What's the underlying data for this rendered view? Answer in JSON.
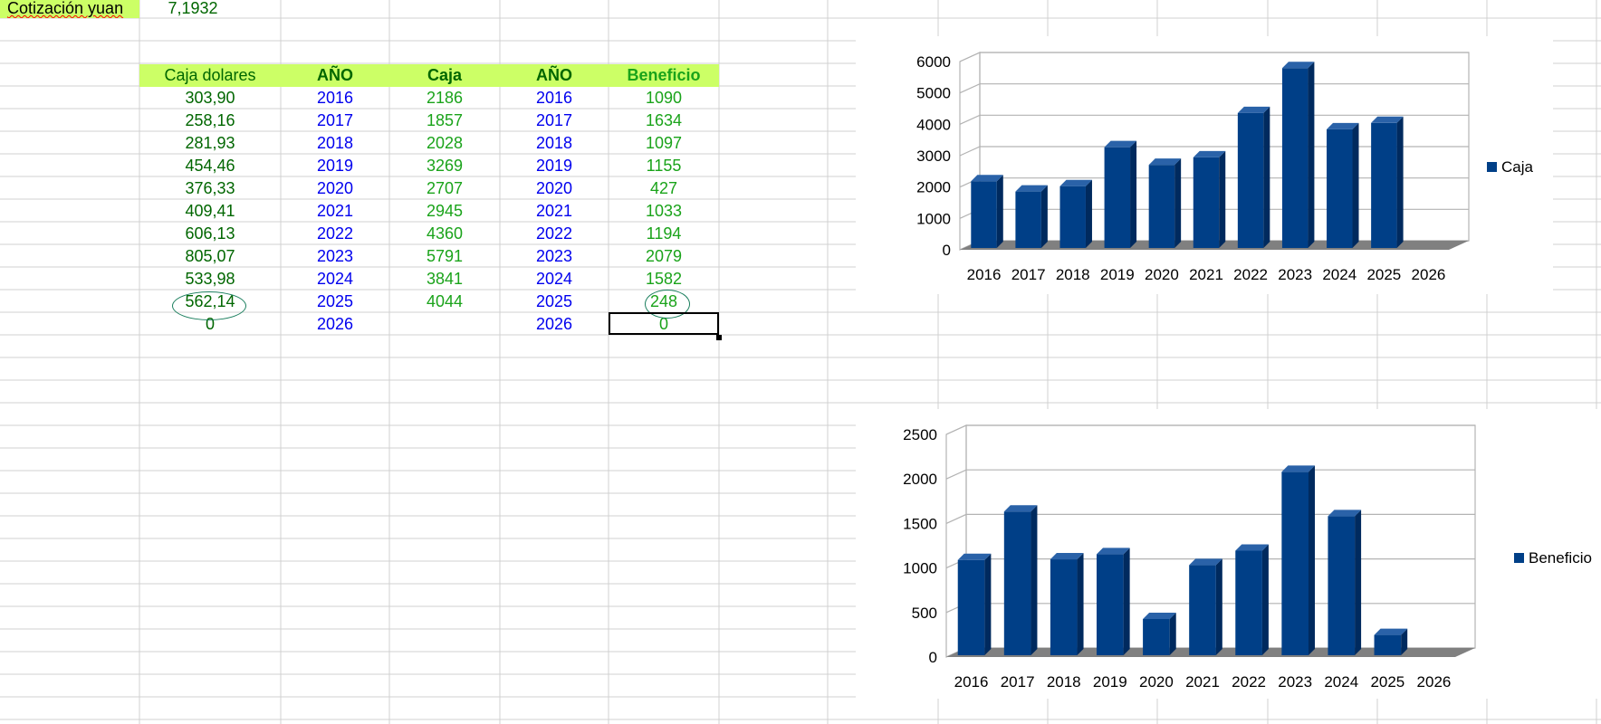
{
  "quote": {
    "label": "Cotización yuan",
    "value": "7,1932"
  },
  "headers": {
    "caja_dolares": "Caja dolares",
    "ano1": "AÑO",
    "caja": "Caja",
    "ano2": "AÑO",
    "beneficio": "Beneficio"
  },
  "rows": [
    {
      "caja_dolares": "303,90",
      "ano1": "2016",
      "caja": "2186",
      "ano2": "2016",
      "beneficio": "1090"
    },
    {
      "caja_dolares": "258,16",
      "ano1": "2017",
      "caja": "1857",
      "ano2": "2017",
      "beneficio": "1634"
    },
    {
      "caja_dolares": "281,93",
      "ano1": "2018",
      "caja": "2028",
      "ano2": "2018",
      "beneficio": "1097"
    },
    {
      "caja_dolares": "454,46",
      "ano1": "2019",
      "caja": "3269",
      "ano2": "2019",
      "beneficio": "1155"
    },
    {
      "caja_dolares": "376,33",
      "ano1": "2020",
      "caja": "2707",
      "ano2": "2020",
      "beneficio": "427"
    },
    {
      "caja_dolares": "409,41",
      "ano1": "2021",
      "caja": "2945",
      "ano2": "2021",
      "beneficio": "1033"
    },
    {
      "caja_dolares": "606,13",
      "ano1": "2022",
      "caja": "4360",
      "ano2": "2022",
      "beneficio": "1194"
    },
    {
      "caja_dolares": "805,07",
      "ano1": "2023",
      "caja": "5791",
      "ano2": "2023",
      "beneficio": "2079"
    },
    {
      "caja_dolares": "533,98",
      "ano1": "2024",
      "caja": "3841",
      "ano2": "2024",
      "beneficio": "1582"
    },
    {
      "caja_dolares": "562,14",
      "ano1": "2025",
      "caja": "4044",
      "ano2": "2025",
      "beneficio": "248"
    },
    {
      "caja_dolares": "0",
      "ano1": "2026",
      "caja": "",
      "ano2": "2026",
      "beneficio": "0"
    }
  ],
  "colors": {
    "bar": "#003f87",
    "bar_side": "#002a5e",
    "bar_top": "#2a62a8",
    "floor": "#808080",
    "gridline": "#b3b3b3",
    "header_bg": "#ccff66"
  },
  "chart_data": [
    {
      "type": "bar",
      "categories": [
        "2016",
        "2017",
        "2018",
        "2019",
        "2020",
        "2021",
        "2022",
        "2023",
        "2024",
        "2025",
        "2026"
      ],
      "series": [
        {
          "name": "Caja",
          "values": [
            2186,
            1857,
            2028,
            3269,
            2707,
            2945,
            4360,
            5791,
            3841,
            4044,
            null
          ]
        }
      ],
      "ylim": [
        0,
        6000
      ],
      "yticks": [
        0,
        1000,
        2000,
        3000,
        4000,
        5000,
        6000
      ],
      "grid": true,
      "legend": "right",
      "style": "3d"
    },
    {
      "type": "bar",
      "categories": [
        "2016",
        "2017",
        "2018",
        "2019",
        "2020",
        "2021",
        "2022",
        "2023",
        "2024",
        "2025",
        "2026"
      ],
      "series": [
        {
          "name": "Beneficio",
          "values": [
            1090,
            1634,
            1097,
            1155,
            427,
            1033,
            1194,
            2079,
            1582,
            248,
            0
          ]
        }
      ],
      "ylim": [
        0,
        2500
      ],
      "yticks": [
        0,
        500,
        1000,
        1500,
        2000,
        2500
      ],
      "grid": true,
      "legend": "right",
      "style": "3d"
    }
  ]
}
